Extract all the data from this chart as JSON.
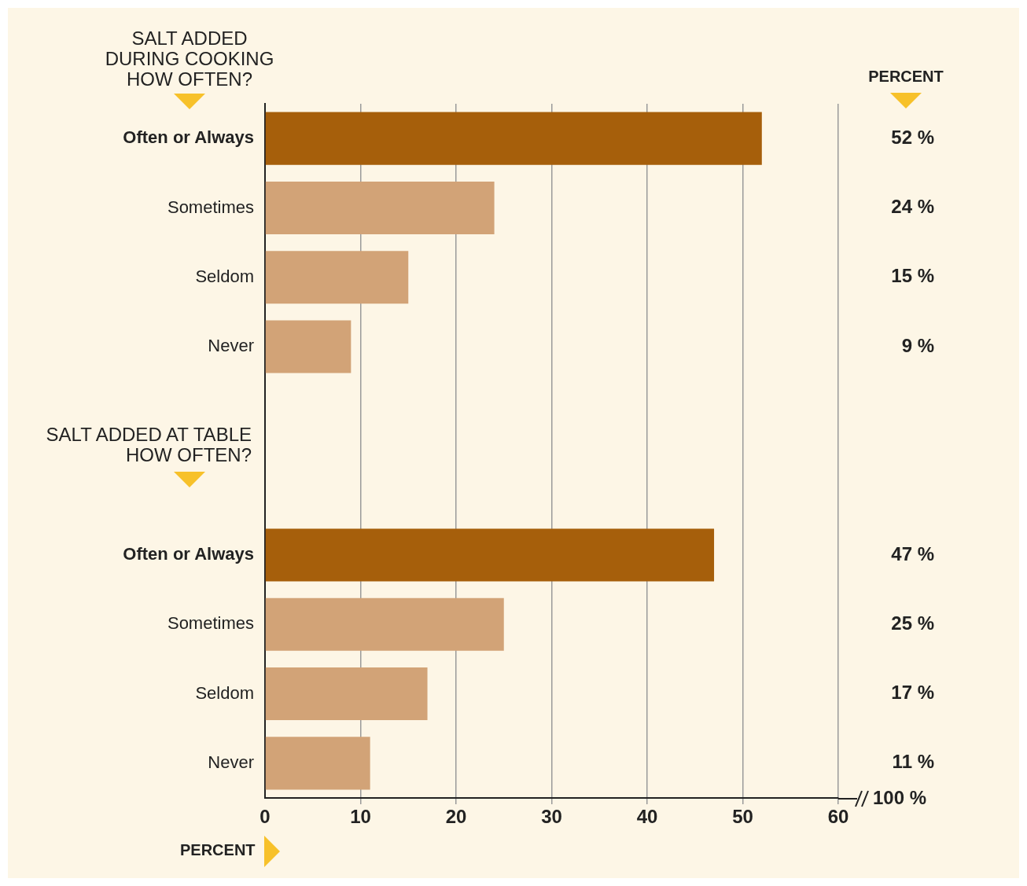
{
  "chart_data": {
    "type": "bar",
    "orientation": "horizontal",
    "categories": [
      "Often or Always",
      "Sometimes",
      "Seldom",
      "Never",
      null,
      null,
      "Often or Always",
      "Sometimes",
      "Seldom",
      "Never"
    ],
    "values": [
      52,
      24,
      15,
      9,
      null,
      null,
      47,
      25,
      17,
      11
    ],
    "colors": [
      "#a65f0b",
      "#d2a377",
      "#d2a377",
      "#d2a377",
      "#d2a377",
      "#d2a377",
      "#a65f0b",
      "#d2a377",
      "#d2a377",
      "#d2a377"
    ],
    "value_labels": [
      "52 %",
      "24 %",
      "15 %",
      "9 %",
      null,
      null,
      "47 %",
      "25 %",
      "17 %",
      "11 %"
    ],
    "xlim": [
      0,
      60
    ],
    "xticks": [
      0,
      10,
      20,
      30,
      40,
      50,
      60
    ],
    "grid": "x",
    "legend": false,
    "xlabel": "PERCENT",
    "annotations": [
      "SALT ADDED\nDURING COOKING\nHOW OFTEN?",
      "SALT ADDED AT TABLE\nHOW OFTEN?",
      "PERCENT",
      "100 %"
    ]
  }
}
